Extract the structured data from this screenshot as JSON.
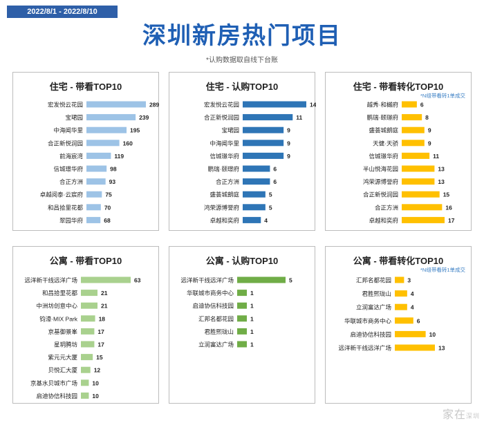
{
  "header": {
    "date_range": "2022/8/1 - 2022/8/10",
    "title": "深圳新房热门项目",
    "note": "*认购数据取自线下台账"
  },
  "colors": {
    "blue_light": "#9dc3e6",
    "blue_dark": "#2e75b6",
    "yellow": "#ffc000",
    "green_light": "#a9d18e",
    "green_dark": "#70ad47",
    "title_blue": "#1f5fb4",
    "banner_blue": "#2e5fa8",
    "note_blue": "#3a7fc4"
  },
  "panels": [
    {
      "title": "住宅 - 带看TOP10",
      "note": ""
    },
    {
      "title": "住宅 - 认购TOP10",
      "note": ""
    },
    {
      "title": "住宅 - 带看转化TOP10",
      "note": "*N组带看转1单成交"
    },
    {
      "title": "公寓 - 带看TOP10",
      "note": ""
    },
    {
      "title": "公寓 - 认购TOP10",
      "note": ""
    },
    {
      "title": "公寓 - 带看转化TOP10",
      "note": "*N组带看转1单成交"
    }
  ],
  "watermark": {
    "main": "家在",
    "sub": "深圳"
  },
  "chart_data": [
    {
      "type": "bar",
      "orientation": "horizontal",
      "color": "#9dc3e6",
      "categories": [
        "宏发悦云花园",
        "宝珺园",
        "中海闻华里",
        "合正新悦润园",
        "前海宸湾",
        "信城璟华府",
        "合正方洲",
        "卓越阅泰·云宸府",
        "和昌拾里花都",
        "翠园华府"
      ],
      "values": [
        289,
        239,
        195,
        160,
        119,
        98,
        93,
        75,
        70,
        68
      ]
    },
    {
      "type": "bar",
      "orientation": "horizontal",
      "color": "#2e75b6",
      "categories": [
        "宏发悦云花园",
        "合正新悦润园",
        "宝珺园",
        "中海闻华里",
        "信城璟华府",
        "鹏瑞·颐璟府",
        "合正方洲",
        "盛荟城朗庭",
        "鸿荣源博誉府",
        "卓越和奕府"
      ],
      "values": [
        14,
        11,
        9,
        9,
        9,
        6,
        6,
        5,
        5,
        4
      ]
    },
    {
      "type": "bar",
      "orientation": "horizontal",
      "color": "#ffc000",
      "categories": [
        "越秀·和樾府",
        "鹏瑞·颐璟府",
        "盛荟城朗庭",
        "天健·天骄",
        "信城璟华府",
        "半山悦海花园",
        "鸿荣源博誉府",
        "合正新悦润园",
        "合正方洲",
        "卓越和奕府"
      ],
      "values": [
        6,
        8,
        9,
        9,
        11,
        13,
        13,
        15,
        16,
        17
      ]
    },
    {
      "type": "bar",
      "orientation": "horizontal",
      "color": "#a9d18e",
      "categories": [
        "远洋新干线远洋广场",
        "和昌拾里花都",
        "中洲坊创意中心",
        "钧濠·MIX Park",
        "京基御景峯",
        "星玥腾坊",
        "紫元元大厦",
        "贝悦汇大厦",
        "京基水贝城市广场",
        "启迪协信科技园"
      ],
      "values": [
        63,
        21,
        21,
        18,
        17,
        17,
        15,
        12,
        10,
        10
      ]
    },
    {
      "type": "bar",
      "orientation": "horizontal",
      "color": "#70ad47",
      "categories": [
        "远洋新干线远洋广场",
        "华联城市商务中心",
        "启迪协信科技园",
        "汇邦名都花园",
        "君胜熙珑山",
        "立润富达广场"
      ],
      "values": [
        5,
        1,
        1,
        1,
        1,
        1
      ]
    },
    {
      "type": "bar",
      "orientation": "horizontal",
      "color": "#ffc000",
      "categories": [
        "汇邦名都花园",
        "君胜熙珑山",
        "立润富达广场",
        "华联城市商务中心",
        "启迪协信科技园",
        "远洋新干线远洋广场"
      ],
      "values": [
        3,
        4,
        4,
        6,
        10,
        13
      ]
    }
  ]
}
